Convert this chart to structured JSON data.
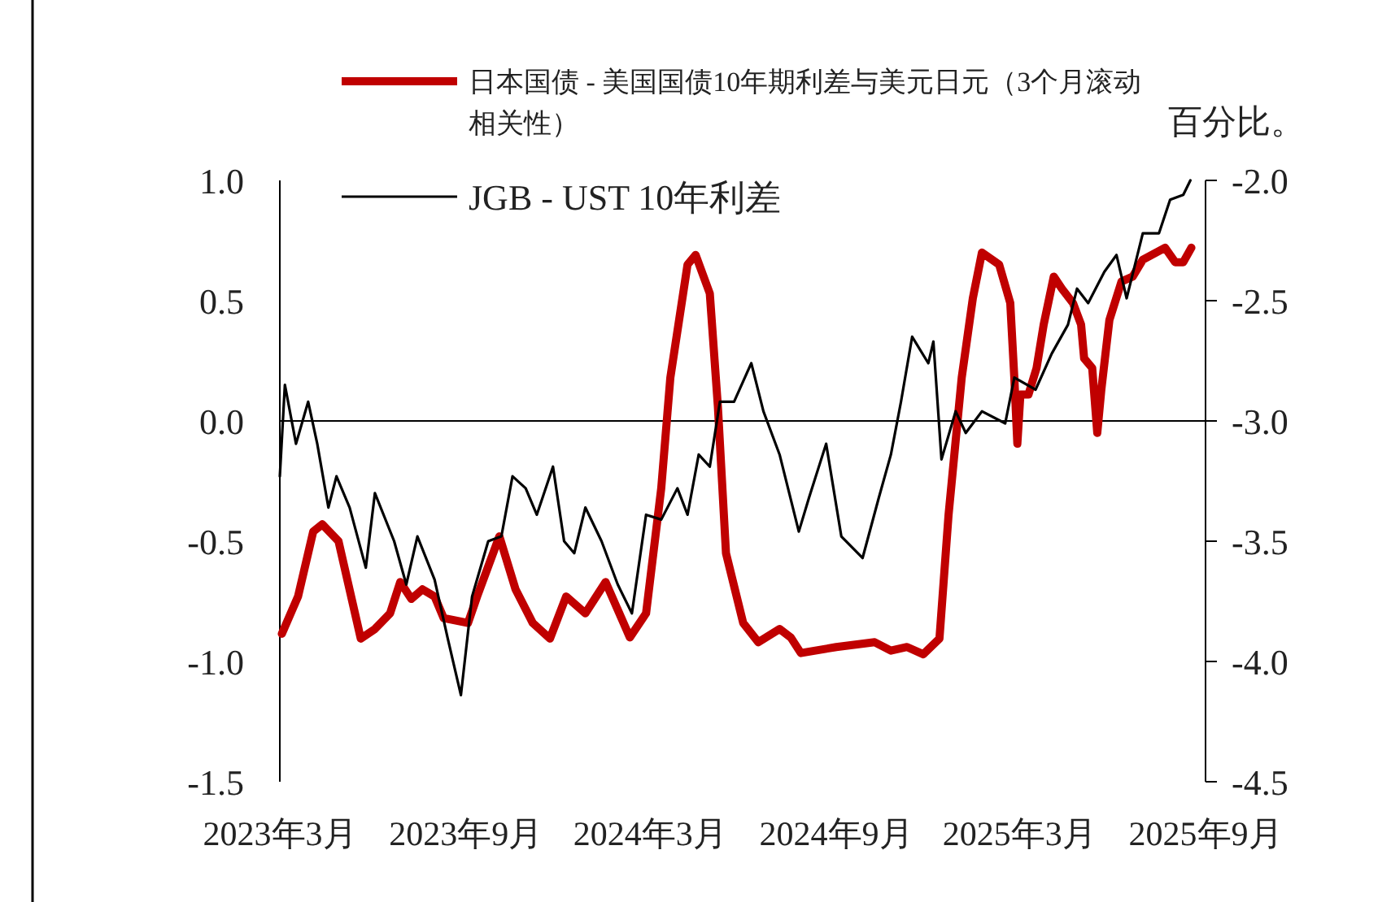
{
  "chart_data": {
    "type": "line",
    "legend": "top left",
    "y2label": "百分比。",
    "series": [
      {
        "name": "日本国债 - 美国国债10年期利差与美元日元（3个月滚动相关性）",
        "color": "#c00000",
        "x": [
          "2023-03-03",
          "2023-03-19",
          "2023-04-03",
          "2023-04-12",
          "2023-04-28",
          "2023-05-20",
          "2023-06-03",
          "2023-06-18",
          "2023-06-28",
          "2023-07-09",
          "2023-07-20",
          "2023-08-01",
          "2023-08-10",
          "2023-09-03",
          "2023-09-12",
          "2023-10-04",
          "2023-10-20",
          "2023-11-06",
          "2023-11-23",
          "2023-12-09",
          "2023-12-28",
          "2024-01-17",
          "2024-02-10",
          "2024-02-26",
          "2024-03-12",
          "2024-03-21",
          "2024-04-07",
          "2024-04-15",
          "2024-04-29",
          "2024-05-07",
          "2024-05-15",
          "2024-06-01",
          "2024-06-16",
          "2024-07-07",
          "2024-07-18",
          "2024-07-28",
          "2024-09-01",
          "2024-10-09",
          "2024-10-25",
          "2024-11-10",
          "2024-11-26",
          "2024-12-12",
          "2024-12-21",
          "2025-01-03",
          "2025-01-14",
          "2025-01-23",
          "2025-02-09",
          "2025-02-20",
          "2025-02-24",
          "2025-02-27",
          "2025-03-02",
          "2025-03-10",
          "2025-03-18",
          "2025-03-25",
          "2025-04-04",
          "2025-04-12",
          "2025-04-23",
          "2025-05-01",
          "2025-05-04",
          "2025-05-12",
          "2025-05-17",
          "2025-05-21",
          "2025-05-29",
          "2025-06-10",
          "2025-06-21",
          "2025-07-01",
          "2025-07-23",
          "2025-08-02",
          "2025-08-10",
          "2025-08-18"
        ],
        "values": [
          -0.885,
          -0.73,
          -0.46,
          -0.43,
          -0.5,
          -0.905,
          -0.865,
          -0.8,
          -0.67,
          -0.74,
          -0.7,
          -0.73,
          -0.82,
          -0.84,
          -0.73,
          -0.48,
          -0.7,
          -0.84,
          -0.905,
          -0.73,
          -0.8,
          -0.67,
          -0.9,
          -0.8,
          -0.28,
          0.18,
          0.65,
          0.69,
          0.53,
          0.06,
          -0.55,
          -0.84,
          -0.92,
          -0.865,
          -0.9,
          -0.965,
          -0.94,
          -0.92,
          -0.955,
          -0.94,
          -0.97,
          -0.905,
          -0.39,
          0.18,
          0.51,
          0.7,
          0.65,
          0.49,
          0.18,
          -0.095,
          0.11,
          0.11,
          0.22,
          0.4,
          0.6,
          0.55,
          0.49,
          0.4,
          0.26,
          0.22,
          -0.05,
          0.13,
          0.42,
          0.58,
          0.6,
          0.67,
          0.72,
          0.66,
          0.66,
          0.72
        ]
      },
      {
        "name": "JGB - UST 10年利差",
        "color": "#000000",
        "axis": "y2",
        "x": [
          "2023-03-01",
          "2023-03-06",
          "2023-03-17",
          "2023-03-29",
          "2023-04-07",
          "2023-04-18",
          "2023-04-26",
          "2023-05-09",
          "2023-05-25",
          "2023-06-03",
          "2023-06-22",
          "2023-07-04",
          "2023-07-15",
          "2023-08-01",
          "2023-08-14",
          "2023-08-27",
          "2023-09-07",
          "2023-09-23",
          "2023-10-06",
          "2023-10-17",
          "2023-10-30",
          "2023-11-10",
          "2023-11-26",
          "2023-12-07",
          "2023-12-17",
          "2023-12-28",
          "2024-01-13",
          "2024-01-29",
          "2024-02-12",
          "2024-02-26",
          "2024-03-12",
          "2024-03-28",
          "2024-04-07",
          "2024-04-18",
          "2024-04-29",
          "2024-05-09",
          "2024-05-23",
          "2024-06-09",
          "2024-06-21",
          "2024-07-07",
          "2024-07-26",
          "2024-08-05",
          "2024-08-22",
          "2024-09-06",
          "2024-09-27",
          "2024-10-13",
          "2024-10-25",
          "2024-11-04",
          "2024-11-15",
          "2024-12-01",
          "2024-12-06",
          "2024-12-14",
          "2024-12-28",
          "2025-01-07",
          "2025-01-23",
          "2025-02-15",
          "2025-02-24",
          "2025-03-17",
          "2025-04-02",
          "2025-04-18",
          "2025-04-27",
          "2025-05-08",
          "2025-05-24",
          "2025-06-05",
          "2025-06-15",
          "2025-07-01",
          "2025-07-17",
          "2025-07-28",
          "2025-08-10",
          "2025-08-17"
        ],
        "values": [
          -3.23,
          -2.85,
          -3.095,
          -2.92,
          -3.095,
          -3.36,
          -3.23,
          -3.36,
          -3.61,
          -3.3,
          -3.5,
          -3.68,
          -3.48,
          -3.66,
          -3.905,
          -4.14,
          -3.73,
          -3.5,
          -3.48,
          -3.23,
          -3.28,
          -3.39,
          -3.19,
          -3.5,
          -3.55,
          -3.36,
          -3.5,
          -3.68,
          -3.8,
          -3.39,
          -3.41,
          -3.28,
          -3.39,
          -3.14,
          -3.19,
          -2.92,
          -2.92,
          -2.76,
          -2.96,
          -3.14,
          -3.46,
          -3.32,
          -3.095,
          -3.48,
          -3.57,
          -3.32,
          -3.14,
          -2.92,
          -2.65,
          -2.76,
          -2.67,
          -3.16,
          -2.96,
          -3.05,
          -2.96,
          -3.01,
          -2.82,
          -2.87,
          -2.72,
          -2.6,
          -2.45,
          -2.51,
          -2.38,
          -2.31,
          -2.49,
          -2.22,
          -2.22,
          -2.08,
          -2.06,
          -2.0
        ]
      }
    ],
    "xlim": [
      "2023-03-01",
      "2025-09-01"
    ],
    "xticks": [
      {
        "value": "2023-03-01",
        "label": "2023年3月"
      },
      {
        "value": "2023-09-01",
        "label": "2023年9月"
      },
      {
        "value": "2024-03-01",
        "label": "2024年3月"
      },
      {
        "value": "2024-09-01",
        "label": "2024年9月"
      },
      {
        "value": "2025-03-01",
        "label": "2025年3月"
      },
      {
        "value": "2025-09-01",
        "label": "2025年9月"
      }
    ],
    "ylim": [
      -1.5,
      1.0
    ],
    "yticks": [
      {
        "value": 1.0,
        "label": "1.0"
      },
      {
        "value": 0.5,
        "label": "0.5"
      },
      {
        "value": 0,
        "label": "0.0"
      },
      {
        "value": -0.5,
        "label": "-0.5"
      },
      {
        "value": -1.0,
        "label": "-1.0"
      },
      {
        "value": -1.5,
        "label": "-1.5"
      }
    ],
    "y2lim": [
      -4.5,
      -2.0
    ],
    "y2ticks": [
      {
        "value": -2.0,
        "label": "-2.0"
      },
      {
        "value": -2.5,
        "label": "-2.5"
      },
      {
        "value": -3.0,
        "label": "-3.0"
      },
      {
        "value": -3.5,
        "label": "-3.5"
      },
      {
        "value": -4.0,
        "label": "-4.0"
      },
      {
        "value": -4.5,
        "label": "-4.5"
      }
    ],
    "ref_lines": [
      {
        "axis": "y",
        "value": 0,
        "color": "#000000"
      }
    ]
  }
}
